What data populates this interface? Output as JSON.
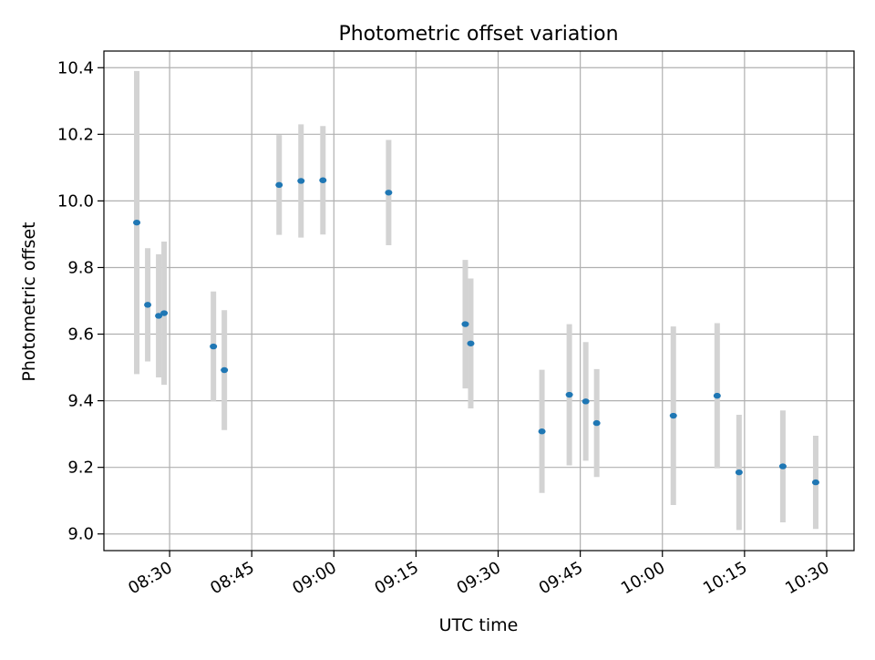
{
  "chart_data": {
    "type": "scatter",
    "title": "Photometric offset variation",
    "xlabel": "UTC time",
    "ylabel": "Photometric offset",
    "x_tick_labels": [
      "08:30",
      "08:45",
      "09:00",
      "09:15",
      "09:30",
      "09:45",
      "10:00",
      "10:15",
      "10:30"
    ],
    "y_tick_labels": [
      "9.0",
      "9.2",
      "9.4",
      "9.6",
      "9.8",
      "10.0",
      "10.2",
      "10.4"
    ],
    "x_ticks": [
      "08:30",
      "08:45",
      "09:00",
      "09:15",
      "09:30",
      "09:45",
      "10:00",
      "10:15",
      "10:30"
    ],
    "y_ticks": [
      9.0,
      9.2,
      9.4,
      9.6,
      9.8,
      10.0,
      10.2,
      10.4
    ],
    "xlim": [
      "08:18",
      "10:35"
    ],
    "ylim": [
      8.95,
      10.45
    ],
    "grid": true,
    "marker_color": "#1f77b4",
    "errorbar_color": "#d3d3d3",
    "points": [
      {
        "x": "08:24",
        "y": 9.935,
        "yerr": 0.455
      },
      {
        "x": "08:26",
        "y": 9.688,
        "yerr": 0.17
      },
      {
        "x": "08:28",
        "y": 9.655,
        "yerr": 0.185
      },
      {
        "x": "08:29",
        "y": 9.663,
        "yerr": 0.215
      },
      {
        "x": "08:38",
        "y": 9.563,
        "yerr": 0.165
      },
      {
        "x": "08:40",
        "y": 9.492,
        "yerr": 0.18
      },
      {
        "x": "08:50",
        "y": 10.048,
        "yerr": 0.15
      },
      {
        "x": "08:54",
        "y": 10.06,
        "yerr": 0.17
      },
      {
        "x": "08:58",
        "y": 10.062,
        "yerr": 0.163
      },
      {
        "x": "09:10",
        "y": 10.025,
        "yerr": 0.158
      },
      {
        "x": "09:24",
        "y": 9.63,
        "yerr": 0.193
      },
      {
        "x": "09:25",
        "y": 9.572,
        "yerr": 0.195
      },
      {
        "x": "09:38",
        "y": 9.308,
        "yerr": 0.185
      },
      {
        "x": "09:43",
        "y": 9.418,
        "yerr": 0.212
      },
      {
        "x": "09:46",
        "y": 9.398,
        "yerr": 0.178
      },
      {
        "x": "09:48",
        "y": 9.333,
        "yerr": 0.162
      },
      {
        "x": "10:02",
        "y": 9.355,
        "yerr": 0.268
      },
      {
        "x": "10:10",
        "y": 9.415,
        "yerr": 0.218
      },
      {
        "x": "10:14",
        "y": 9.185,
        "yerr": 0.173
      },
      {
        "x": "10:22",
        "y": 9.203,
        "yerr": 0.168
      },
      {
        "x": "10:28",
        "y": 9.155,
        "yerr": 0.14
      }
    ]
  }
}
